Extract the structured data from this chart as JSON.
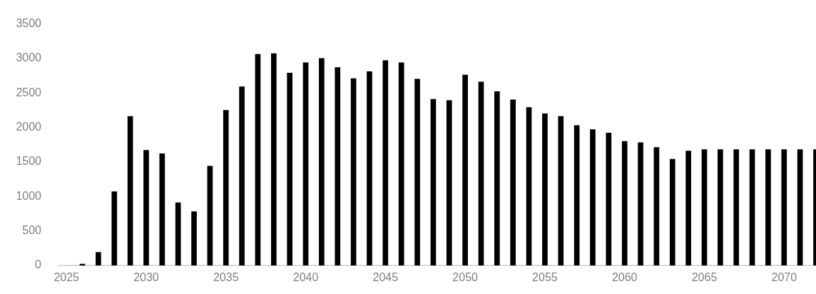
{
  "chart_data": {
    "type": "bar",
    "x": [
      2026,
      2027,
      2028,
      2029,
      2030,
      2031,
      2032,
      2033,
      2034,
      2035,
      2036,
      2037,
      2038,
      2039,
      2040,
      2041,
      2042,
      2043,
      2044,
      2045,
      2046,
      2047,
      2048,
      2049,
      2050,
      2051,
      2052,
      2053,
      2054,
      2055,
      2056,
      2057,
      2058,
      2059,
      2060,
      2061,
      2062,
      2063,
      2064,
      2065,
      2066,
      2067,
      2068,
      2069,
      2070,
      2071,
      2072
    ],
    "values": [
      20,
      190,
      1070,
      2160,
      1670,
      1620,
      910,
      780,
      1440,
      2250,
      2590,
      3060,
      3070,
      2790,
      2940,
      3000,
      2870,
      2710,
      2810,
      2970,
      2940,
      2700,
      2410,
      2390,
      2760,
      2660,
      2520,
      2400,
      2290,
      2200,
      2160,
      2030,
      1970,
      1920,
      1800,
      1780,
      1710,
      1540,
      1660,
      1680,
      1680,
      1680,
      1680,
      1680,
      1680,
      1680,
      1680
    ],
    "color": "#000000",
    "xlim": [
      2024.5,
      2072
    ],
    "xticks": [
      2025,
      2030,
      2035,
      2040,
      2045,
      2050,
      2055,
      2060,
      2065,
      2070
    ],
    "ylim": [
      0,
      3500
    ],
    "yticks": [
      0,
      500,
      1000,
      1500,
      2000,
      2500,
      3000,
      3500
    ]
  }
}
